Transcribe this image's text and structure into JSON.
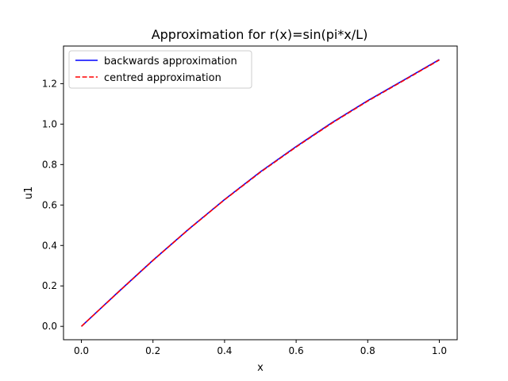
{
  "chart_data": {
    "type": "line",
    "title": "Approximation for r(x)=sin(pi*x/L)",
    "xlabel": "x",
    "ylabel": "u1",
    "xlim": [
      -0.05,
      1.05
    ],
    "ylim": [
      -0.066,
      1.386
    ],
    "xticks": [
      0.0,
      0.2,
      0.4,
      0.6,
      0.8,
      1.0
    ],
    "xtick_labels": [
      "0.0",
      "0.2",
      "0.4",
      "0.6",
      "0.8",
      "1.0"
    ],
    "yticks": [
      0.0,
      0.2,
      0.4,
      0.6,
      0.8,
      1.0,
      1.2
    ],
    "ytick_labels": [
      "0.0",
      "0.2",
      "0.4",
      "0.6",
      "0.8",
      "1.0",
      "1.2"
    ],
    "grid": false,
    "legend_position": "top-left",
    "x": [
      0.0,
      0.1,
      0.2,
      0.3,
      0.4,
      0.5,
      0.6,
      0.7,
      0.8,
      0.9,
      1.0
    ],
    "series": [
      {
        "name": "backwards approximation",
        "color": "#0000ff",
        "style": "solid",
        "values": [
          0.0,
          0.165,
          0.327,
          0.481,
          0.627,
          0.764,
          0.889,
          1.007,
          1.116,
          1.217,
          1.319
        ]
      },
      {
        "name": "centred approximation",
        "color": "#ff0000",
        "style": "dashed",
        "values": [
          0.0,
          0.164,
          0.326,
          0.48,
          0.626,
          0.762,
          0.887,
          1.005,
          1.114,
          1.215,
          1.317
        ]
      }
    ]
  }
}
